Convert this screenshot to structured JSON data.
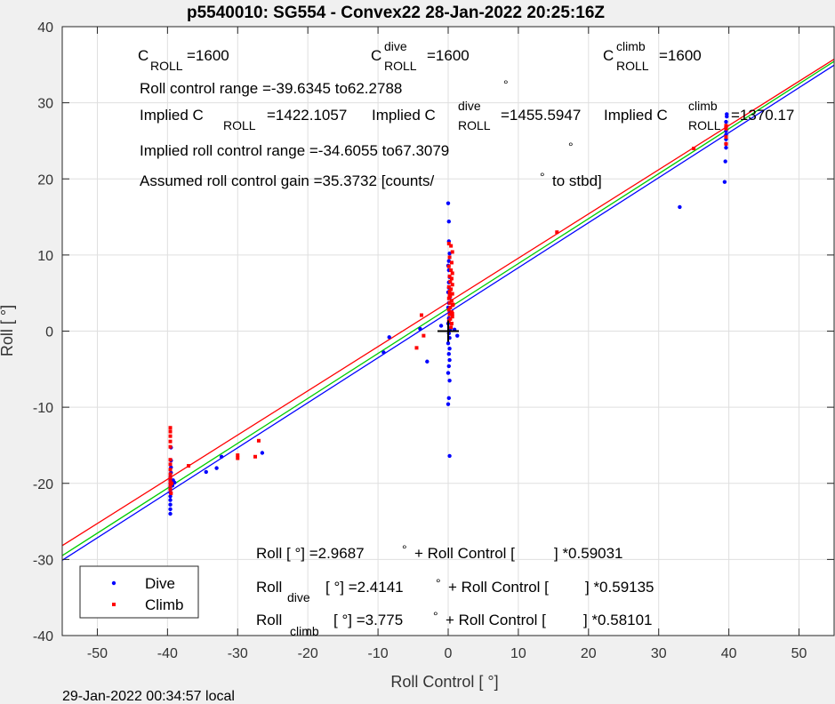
{
  "chart_data": {
    "type": "scatter",
    "title": "p5540010: SG554 - Convex22 28-Jan-2022 20:25:16Z",
    "xlabel": "Roll Control [   °]",
    "ylabel": "Roll [  °]",
    "xlim": [
      -55,
      55
    ],
    "ylim": [
      -40,
      40
    ],
    "xticks": [
      -50,
      -40,
      -30,
      -20,
      -10,
      0,
      10,
      20,
      30,
      40,
      50
    ],
    "yticks": [
      -40,
      -30,
      -20,
      -10,
      0,
      10,
      20,
      30,
      40
    ],
    "grid": true,
    "legend_position": "bottom-left",
    "series": [
      {
        "name": "Dive",
        "color": "#0000ff",
        "marker": "dot",
        "points": [
          [
            -39.6,
            -24.0
          ],
          [
            -39.6,
            -23.4
          ],
          [
            -39.6,
            -22.8
          ],
          [
            -39.6,
            -22.2
          ],
          [
            -39.6,
            -21.7
          ],
          [
            -39.6,
            -21.2
          ],
          [
            -39.6,
            -20.8
          ],
          [
            -39.6,
            -20.4
          ],
          [
            -39.6,
            -20.0
          ],
          [
            -39.6,
            -19.6
          ],
          [
            -39.6,
            -19.2
          ],
          [
            -39.5,
            -18.6
          ],
          [
            -39.5,
            -17.9
          ],
          [
            -39.5,
            -17.0
          ],
          [
            -39.5,
            -15.3
          ],
          [
            -39.3,
            -20.3
          ],
          [
            -39.2,
            -19.6
          ],
          [
            -39.0,
            -19.9
          ],
          [
            -34.5,
            -18.5
          ],
          [
            -33.0,
            -18.0
          ],
          [
            -32.3,
            -16.5
          ],
          [
            -26.5,
            -16.0
          ],
          [
            -9.2,
            -2.8
          ],
          [
            -8.4,
            -0.8
          ],
          [
            -4.0,
            0.3
          ],
          [
            -3.0,
            -4.0
          ],
          [
            0,
            16.8
          ],
          [
            0.1,
            14.4
          ],
          [
            0.1,
            11.8
          ],
          [
            0.2,
            10.2
          ],
          [
            0.1,
            9.2
          ],
          [
            0,
            8.6
          ],
          [
            0.1,
            8.0
          ],
          [
            0.2,
            7.1
          ],
          [
            0.1,
            6.4
          ],
          [
            0.1,
            5.7
          ],
          [
            0,
            5.1
          ],
          [
            0.2,
            4.4
          ],
          [
            0.1,
            3.7
          ],
          [
            0,
            3.1
          ],
          [
            0.2,
            2.4
          ],
          [
            0.1,
            1.7
          ],
          [
            0,
            1.0
          ],
          [
            0.3,
            0.3
          ],
          [
            0.1,
            -0.3
          ],
          [
            0.2,
            -0.9
          ],
          [
            0,
            -1.6
          ],
          [
            0.2,
            -2.3
          ],
          [
            0.1,
            -3.0
          ],
          [
            0.2,
            -3.8
          ],
          [
            0.1,
            -4.6
          ],
          [
            0,
            -5.5
          ],
          [
            0.2,
            -6.5
          ],
          [
            0.1,
            -8.8
          ],
          [
            0,
            -9.6
          ],
          [
            0.2,
            -16.4
          ],
          [
            -1.0,
            0.7
          ],
          [
            0.9,
            0.2
          ],
          [
            1.3,
            -0.6
          ],
          [
            33.0,
            16.3
          ],
          [
            39.4,
            19.6
          ],
          [
            39.5,
            22.3
          ],
          [
            39.6,
            24.1
          ],
          [
            39.6,
            24.6
          ],
          [
            39.6,
            25.2
          ],
          [
            39.6,
            25.8
          ],
          [
            39.6,
            26.3
          ],
          [
            39.6,
            26.8
          ],
          [
            39.6,
            27.5
          ],
          [
            39.7,
            28.2
          ],
          [
            39.7,
            28.5
          ]
        ]
      },
      {
        "name": "Climb",
        "color": "#ff0000",
        "marker": "square",
        "points": [
          [
            -39.6,
            -12.7
          ],
          [
            -39.6,
            -13.2
          ],
          [
            -39.6,
            -13.8
          ],
          [
            -39.6,
            -14.5
          ],
          [
            -39.6,
            -15.2
          ],
          [
            -39.6,
            -16.9
          ],
          [
            -39.6,
            -17.5
          ],
          [
            -39.6,
            -18.2
          ],
          [
            -39.6,
            -18.8
          ],
          [
            -39.6,
            -19.3
          ],
          [
            -39.6,
            -19.8
          ],
          [
            -39.6,
            -20.3
          ],
          [
            -39.6,
            -20.8
          ],
          [
            -39.5,
            -21.3
          ],
          [
            -39.4,
            -20.0
          ],
          [
            -37.0,
            -17.7
          ],
          [
            -30.0,
            -16.3
          ],
          [
            -30.0,
            -16.7
          ],
          [
            -27.5,
            -16.5
          ],
          [
            -27.0,
            -14.4
          ],
          [
            -4.5,
            -2.2
          ],
          [
            -3.8,
            2.1
          ],
          [
            -3.5,
            -0.6
          ],
          [
            0.1,
            11.5
          ],
          [
            0.4,
            11.2
          ],
          [
            0.6,
            10.4
          ],
          [
            0.2,
            9.7
          ],
          [
            0.5,
            9.0
          ],
          [
            0.1,
            8.5
          ],
          [
            0.4,
            8.0
          ],
          [
            0.6,
            7.6
          ],
          [
            0.2,
            7.2
          ],
          [
            0.5,
            6.9
          ],
          [
            0.3,
            6.5
          ],
          [
            0.6,
            6.1
          ],
          [
            0.1,
            5.8
          ],
          [
            0.4,
            5.5
          ],
          [
            0.2,
            5.2
          ],
          [
            0.6,
            4.9
          ],
          [
            0.3,
            4.6
          ],
          [
            0.1,
            4.3
          ],
          [
            0.5,
            4.0
          ],
          [
            0.2,
            3.7
          ],
          [
            0.6,
            3.4
          ],
          [
            0.3,
            3.1
          ],
          [
            0.1,
            2.8
          ],
          [
            0.5,
            2.5
          ],
          [
            0.2,
            2.2
          ],
          [
            0.6,
            1.9
          ],
          [
            0.3,
            1.6
          ],
          [
            0.1,
            1.3
          ],
          [
            0.5,
            1.0
          ],
          [
            0.4,
            0.5
          ],
          [
            0.6,
            2.3
          ],
          [
            0.2,
            4.8
          ],
          [
            0.7,
            3.5
          ],
          [
            15.5,
            13.0
          ],
          [
            35.0,
            24.0
          ],
          [
            39.6,
            24.6
          ],
          [
            39.6,
            25.5
          ],
          [
            39.6,
            26.6
          ],
          [
            39.6,
            27.0
          ]
        ]
      }
    ],
    "fit_lines": [
      {
        "name": "all",
        "color": "#00cc00",
        "intercept": 2.9687,
        "slope": 0.59031
      },
      {
        "name": "dive",
        "color": "#0000ff",
        "intercept": 2.4141,
        "slope": 0.59135
      },
      {
        "name": "climb",
        "color": "#ff0000",
        "intercept": 3.775,
        "slope": 0.58101
      }
    ],
    "center_marker": [
      0,
      0
    ]
  },
  "annotations": {
    "c_roll": {
      "main": "C",
      "sub": "ROLL",
      "value": "=1600"
    },
    "c_roll_dive": {
      "main": "C",
      "sup": "dive",
      "sub": "ROLL",
      "value": "=1600"
    },
    "c_roll_climb": {
      "main": "C",
      "sup": "climb",
      "sub": "ROLL",
      "value": "=1600"
    },
    "roll_control_range": "Roll control range =-39.6345 to62.2788",
    "implied_c_roll": {
      "main": "Implied C",
      "sub": "ROLL",
      "value": "=1422.1057"
    },
    "implied_c_roll_dive": {
      "main": "Implied C",
      "sup": "dive",
      "sub": "ROLL",
      "value": "=1455.5947"
    },
    "implied_c_roll_climb": {
      "main": "Implied C",
      "sup": "climb",
      "sub": "ROLL",
      "value": "=1370.17"
    },
    "implied_range": "Implied roll control range =-34.6055 to67.3079",
    "gain_prefix": "Assumed roll control gain =35.3732 [counts/",
    "gain_suffix": "to stbd]",
    "fit_all": {
      "lead": "Roll [  °] =2.9687",
      "mid": "+ Roll Control [",
      "tail": "] *0.59031"
    },
    "fit_dive": {
      "main": "Roll",
      "sub": "dive",
      "lead": "[  °] =2.4141",
      "mid": "+ Roll Control [",
      "tail": "] *0.59135"
    },
    "fit_climb": {
      "main": "Roll",
      "sub": "climb",
      "lead": "[  °] =3.775",
      "mid": "+ Roll Control [",
      "tail": "] *0.58101"
    },
    "degree_symbol": "°"
  },
  "legend": {
    "dive": "Dive",
    "climb": "Climb"
  },
  "footer": "29-Jan-2022 00:34:57 local"
}
